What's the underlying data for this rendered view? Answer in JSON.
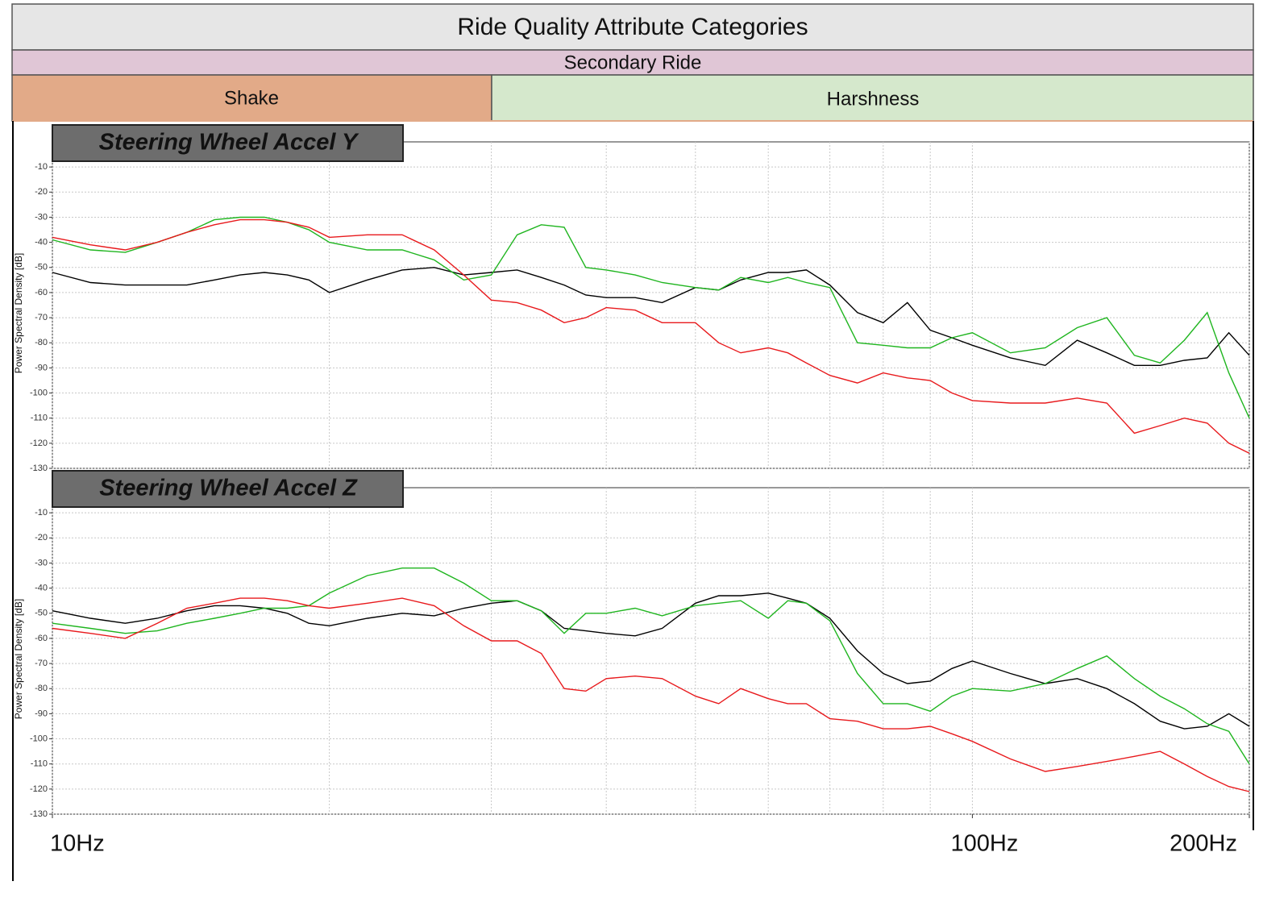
{
  "header": {
    "title": "Ride Quality Attribute Categories",
    "band": "Secondary Ride",
    "segments": [
      "Shake",
      "Harshness"
    ]
  },
  "chart_data": [
    {
      "type": "line",
      "title": "Steering Wheel Accel Y",
      "ylabel": "Power Spectral Density [dB]",
      "xscale": "log",
      "grid": true,
      "xlim": [
        10,
        200
      ],
      "ylim": [
        -130,
        0
      ],
      "yticks": [
        -130,
        -120,
        -110,
        -100,
        -90,
        -80,
        -70,
        -60,
        -50,
        -40,
        -30,
        -20,
        -10
      ],
      "xgrid": [
        10,
        20,
        30,
        40,
        50,
        60,
        70,
        80,
        90,
        100,
        200
      ],
      "x": [
        10,
        11,
        12,
        13,
        14,
        15,
        16,
        17,
        18,
        19,
        20,
        22,
        24,
        26,
        28,
        30,
        32,
        34,
        36,
        38,
        40,
        43,
        46,
        50,
        53,
        56,
        60,
        63,
        66,
        70,
        75,
        80,
        85,
        90,
        95,
        100,
        110,
        120,
        130,
        140,
        150,
        160,
        170,
        180,
        190,
        200
      ],
      "series": [
        {
          "color": "#000000",
          "values": [
            -52,
            -56,
            -57,
            -57,
            -57,
            -55,
            -53,
            -52,
            -53,
            -55,
            -60,
            -55,
            -51,
            -50,
            -53,
            -52,
            -51,
            -54,
            -57,
            -61,
            -62,
            -62,
            -64,
            -58,
            -59,
            -55,
            -52,
            -52,
            -51,
            -57,
            -68,
            -72,
            -64,
            -75,
            -78,
            -81,
            -86,
            -89,
            -79,
            -84,
            -89,
            -89,
            -87,
            -86,
            -76,
            -85
          ]
        },
        {
          "color": "#1fb51f",
          "values": [
            -39,
            -43,
            -44,
            -40,
            -36,
            -31,
            -30,
            -30,
            -32,
            -35,
            -40,
            -43,
            -43,
            -47,
            -55,
            -53,
            -37,
            -33,
            -34,
            -50,
            -51,
            -53,
            -56,
            -58,
            -59,
            -54,
            -56,
            -54,
            -56,
            -58,
            -80,
            -81,
            -82,
            -82,
            -78,
            -76,
            -84,
            -82,
            -74,
            -70,
            -85,
            -88,
            -79,
            -68,
            -92,
            -110
          ]
        },
        {
          "color": "#e8191c",
          "values": [
            -38,
            -41,
            -43,
            -40,
            -36,
            -33,
            -31,
            -31,
            -32,
            -34,
            -38,
            -37,
            -37,
            -43,
            -53,
            -63,
            -64,
            -67,
            -72,
            -70,
            -66,
            -67,
            -72,
            -72,
            -80,
            -84,
            -82,
            -84,
            -88,
            -93,
            -96,
            -92,
            -94,
            -95,
            -100,
            -103,
            -104,
            -104,
            -102,
            -104,
            -116,
            -113,
            -110,
            -112,
            -120,
            -124
          ]
        }
      ]
    },
    {
      "type": "line",
      "title": "Steering Wheel Accel Z",
      "ylabel": "Power Spectral Density [dB]",
      "xscale": "log",
      "grid": true,
      "xlim": [
        10,
        200
      ],
      "ylim": [
        -130,
        0
      ],
      "yticks": [
        -130,
        -120,
        -110,
        -100,
        -90,
        -80,
        -70,
        -60,
        -50,
        -40,
        -30,
        -20,
        -10
      ],
      "xgrid": [
        10,
        20,
        30,
        40,
        50,
        60,
        70,
        80,
        90,
        100,
        200
      ],
      "xticks": [
        {
          "value": 10,
          "label": "10Hz"
        },
        {
          "value": 100,
          "label": "100Hz"
        },
        {
          "value": 200,
          "label": "200Hz"
        }
      ],
      "x": [
        10,
        11,
        12,
        13,
        14,
        15,
        16,
        17,
        18,
        19,
        20,
        22,
        24,
        26,
        28,
        30,
        32,
        34,
        36,
        38,
        40,
        43,
        46,
        50,
        53,
        56,
        60,
        63,
        66,
        70,
        75,
        80,
        85,
        90,
        95,
        100,
        110,
        120,
        130,
        140,
        150,
        160,
        170,
        180,
        190,
        200
      ],
      "series": [
        {
          "color": "#000000",
          "values": [
            -49,
            -52,
            -54,
            -52,
            -49,
            -47,
            -47,
            -48,
            -50,
            -54,
            -55,
            -52,
            -50,
            -51,
            -48,
            -46,
            -45,
            -49,
            -56,
            -57,
            -58,
            -59,
            -56,
            -46,
            -43,
            -43,
            -42,
            -44,
            -46,
            -52,
            -65,
            -74,
            -78,
            -77,
            -72,
            -69,
            -74,
            -78,
            -76,
            -80,
            -86,
            -93,
            -96,
            -95,
            -90,
            -95
          ]
        },
        {
          "color": "#1fb51f",
          "values": [
            -54,
            -56,
            -58,
            -57,
            -54,
            -52,
            -50,
            -48,
            -48,
            -47,
            -42,
            -35,
            -32,
            -32,
            -38,
            -45,
            -45,
            -49,
            -58,
            -50,
            -50,
            -48,
            -51,
            -47,
            -46,
            -45,
            -52,
            -45,
            -46,
            -53,
            -74,
            -86,
            -86,
            -89,
            -83,
            -80,
            -81,
            -78,
            -72,
            -67,
            -76,
            -83,
            -88,
            -94,
            -97,
            -110
          ]
        },
        {
          "color": "#e8191c",
          "values": [
            -56,
            -58,
            -60,
            -54,
            -48,
            -46,
            -44,
            -44,
            -45,
            -47,
            -48,
            -46,
            -44,
            -47,
            -55,
            -61,
            -61,
            -66,
            -80,
            -81,
            -76,
            -75,
            -76,
            -83,
            -86,
            -80,
            -84,
            -86,
            -86,
            -92,
            -93,
            -96,
            -96,
            -95,
            -98,
            -101,
            -108,
            -113,
            -111,
            -109,
            -107,
            -105,
            -110,
            -115,
            -119,
            -121
          ]
        }
      ]
    }
  ]
}
